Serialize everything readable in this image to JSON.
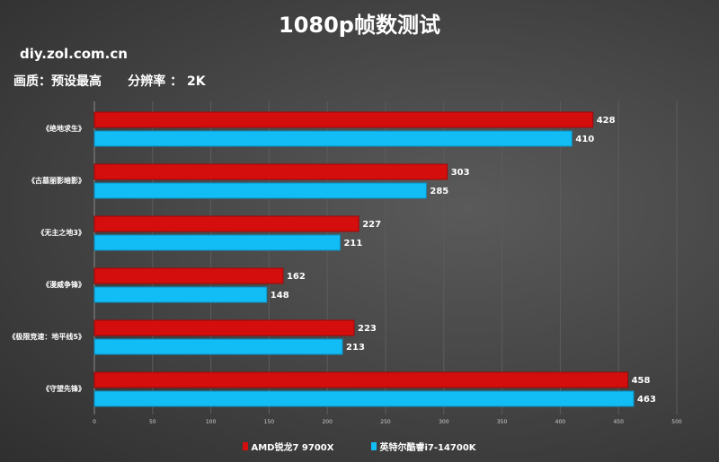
{
  "chart_data": {
    "type": "bar",
    "orientation": "horizontal",
    "title": "1080p帧数测试",
    "subtitle": "画质：预设最高      分辨率 ： 2K",
    "watermark": "diy.zol.com.cn",
    "categories": [
      "《绝地求生》",
      "《古墓丽影暗影》",
      "《无主之地3》",
      "《漫威争锋》",
      "《极限竞速：地平线5》",
      "《守望先锋》"
    ],
    "series": [
      {
        "name": "AMD锐龙7 9700X",
        "color": "#d40d0d",
        "values": [
          428,
          303,
          227,
          162,
          223,
          458
        ]
      },
      {
        "name": "英特尔酷睿i7-14700K",
        "color": "#12bdf5",
        "values": [
          410,
          285,
          211,
          148,
          213,
          463
        ]
      }
    ],
    "xlim": [
      0,
      500
    ],
    "xticks": [
      "0",
      "50",
      "100",
      "150",
      "200",
      "250",
      "300",
      "350",
      "400",
      "450",
      "500"
    ],
    "grid": true,
    "legend": "bottom"
  }
}
